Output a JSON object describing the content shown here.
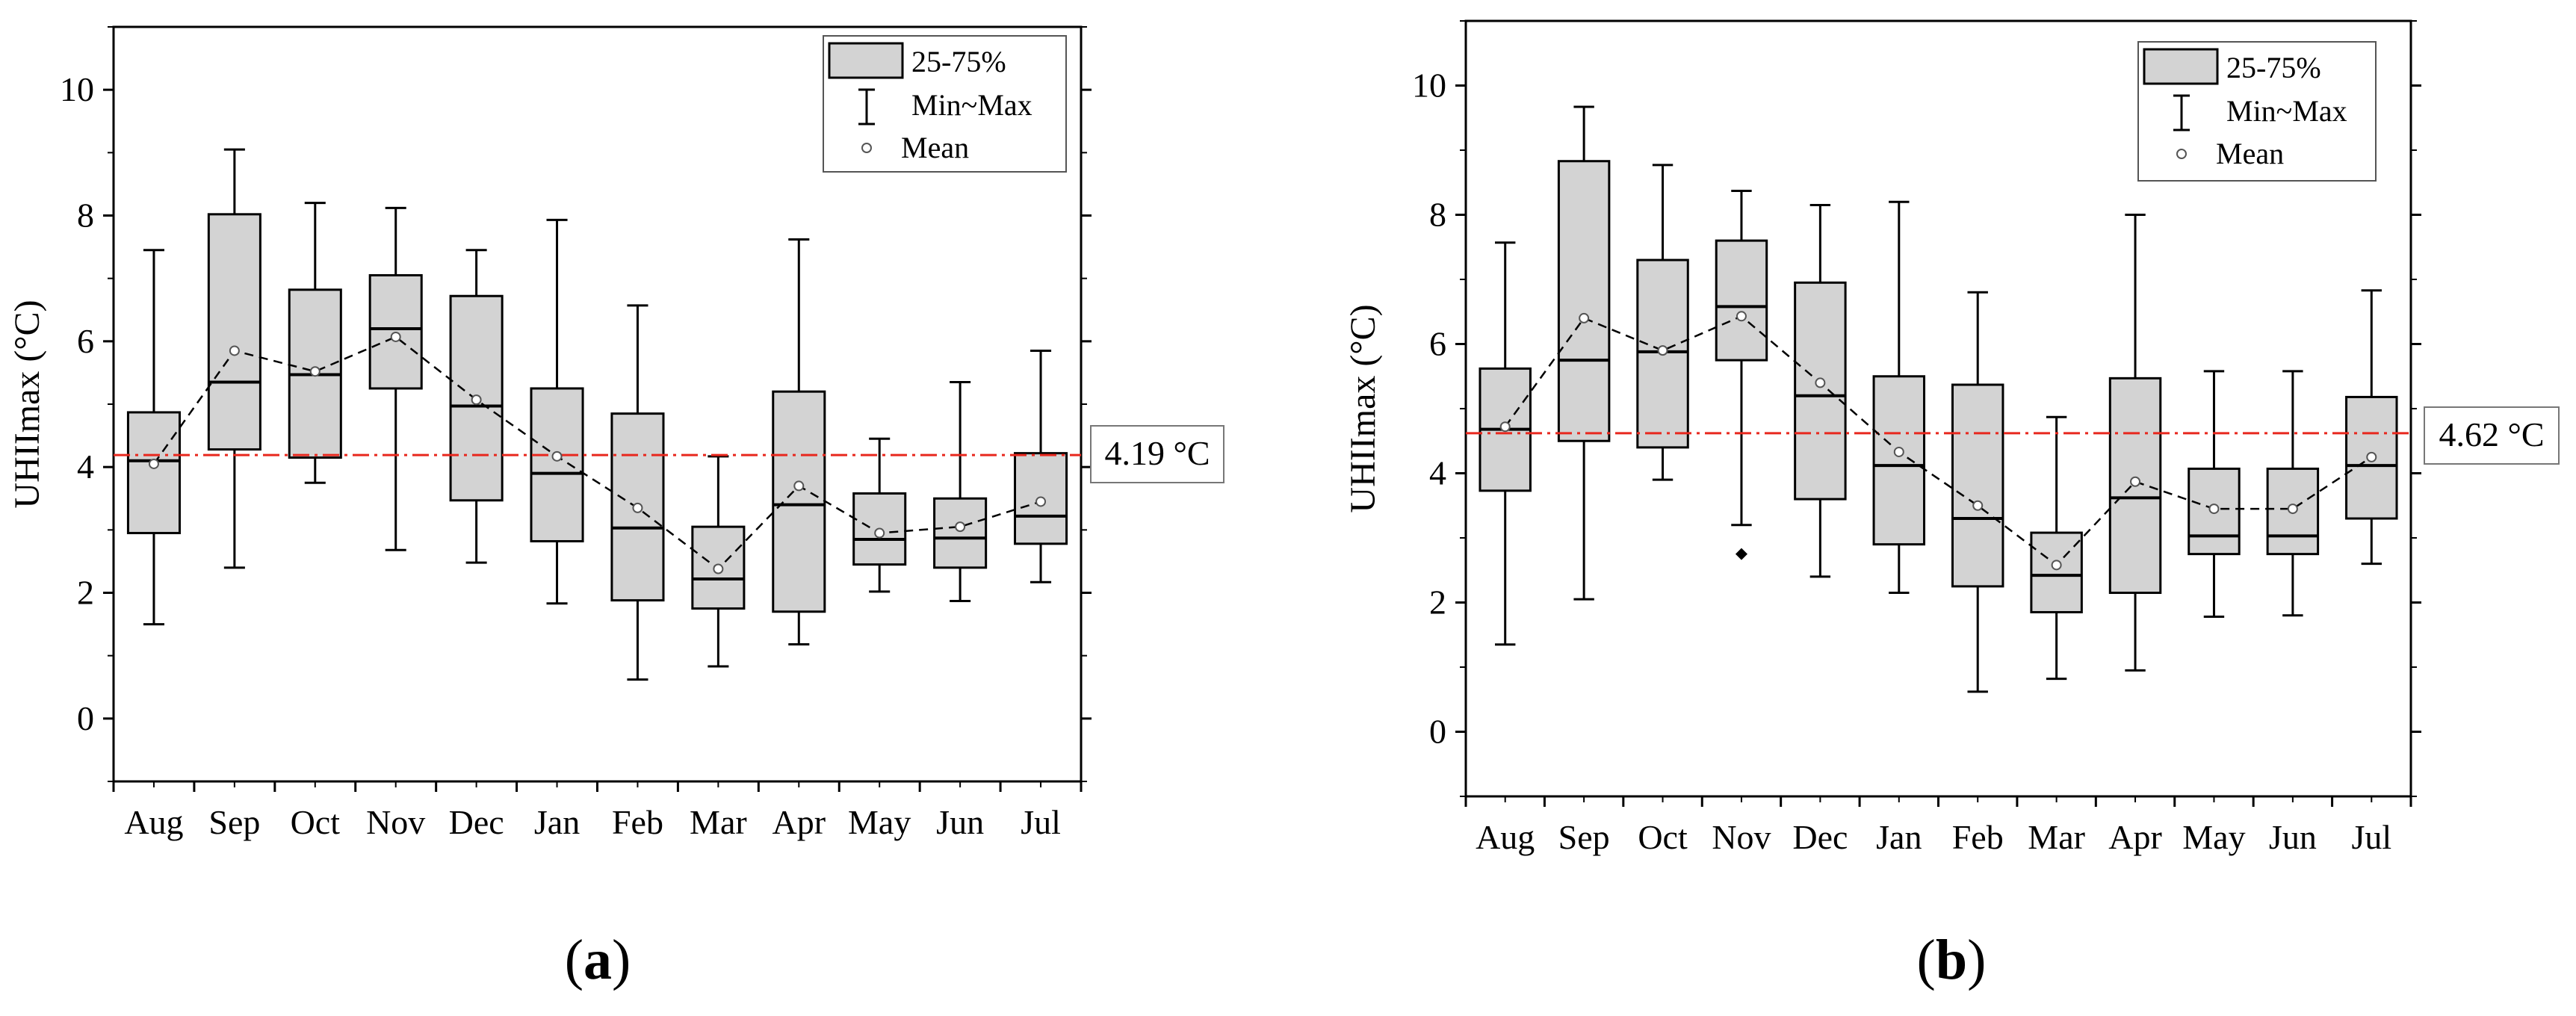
{
  "chart_data": [
    {
      "type": "box",
      "panel_label": "(a)",
      "ylabel": "UHIImax (°C)",
      "ylim": [
        -1,
        11
      ],
      "yticks": [
        0,
        2,
        4,
        6,
        8,
        10
      ],
      "categories": [
        "Aug",
        "Sep",
        "Oct",
        "Nov",
        "Dec",
        "Jan",
        "Feb",
        "Mar",
        "Apr",
        "May",
        "Jun",
        "Jul"
      ],
      "boxes": [
        {
          "min": 1.5,
          "q1": 2.95,
          "median": 4.1,
          "q3": 4.87,
          "max": 7.45,
          "mean": 4.05
        },
        {
          "min": 2.4,
          "q1": 4.28,
          "median": 5.35,
          "q3": 8.02,
          "max": 9.05,
          "mean": 5.85
        },
        {
          "min": 3.75,
          "q1": 4.15,
          "median": 5.47,
          "q3": 6.82,
          "max": 8.2,
          "mean": 5.52
        },
        {
          "min": 2.68,
          "q1": 5.25,
          "median": 6.2,
          "q3": 7.05,
          "max": 8.12,
          "mean": 6.07
        },
        {
          "min": 2.48,
          "q1": 3.47,
          "median": 4.97,
          "q3": 6.72,
          "max": 7.45,
          "mean": 5.07
        },
        {
          "min": 1.83,
          "q1": 2.82,
          "median": 3.9,
          "q3": 5.25,
          "max": 7.93,
          "mean": 4.17
        },
        {
          "min": 0.62,
          "q1": 1.88,
          "median": 3.03,
          "q3": 4.85,
          "max": 6.57,
          "mean": 3.35
        },
        {
          "min": 0.83,
          "q1": 1.75,
          "median": 2.22,
          "q3": 3.05,
          "max": 4.17,
          "mean": 2.38
        },
        {
          "min": 1.18,
          "q1": 1.7,
          "median": 3.4,
          "q3": 5.2,
          "max": 7.62,
          "mean": 3.7
        },
        {
          "min": 2.02,
          "q1": 2.45,
          "median": 2.85,
          "q3": 3.58,
          "max": 4.45,
          "mean": 2.95
        },
        {
          "min": 1.87,
          "q1": 2.4,
          "median": 2.87,
          "q3": 3.5,
          "max": 5.35,
          "mean": 3.05
        },
        {
          "min": 2.17,
          "q1": 2.78,
          "median": 3.22,
          "q3": 4.22,
          "max": 5.85,
          "mean": 3.45
        }
      ],
      "outliers": [],
      "reference_line": {
        "value": 4.19,
        "label": "4.19 °C",
        "color": "#e8281e"
      },
      "legend": {
        "box": "25-75%",
        "whisker": "Min~Max",
        "mean": "Mean",
        "position": "top-right"
      },
      "box_fill": "#d3d3d3"
    },
    {
      "type": "box",
      "panel_label": "(b)",
      "ylabel": "UHIImax (°C)",
      "ylim": [
        -1,
        11
      ],
      "yticks": [
        0,
        2,
        4,
        6,
        8,
        10
      ],
      "categories": [
        "Aug",
        "Sep",
        "Oct",
        "Nov",
        "Dec",
        "Jan",
        "Feb",
        "Mar",
        "Apr",
        "May",
        "Jun",
        "Jul"
      ],
      "boxes": [
        {
          "min": 1.35,
          "q1": 3.73,
          "median": 4.68,
          "q3": 5.62,
          "max": 7.57,
          "mean": 4.72
        },
        {
          "min": 2.05,
          "q1": 4.5,
          "median": 5.75,
          "q3": 8.83,
          "max": 9.67,
          "mean": 6.4
        },
        {
          "min": 3.9,
          "q1": 4.4,
          "median": 5.88,
          "q3": 7.3,
          "max": 8.77,
          "mean": 5.9
        },
        {
          "min": 3.2,
          "q1": 5.75,
          "median": 6.58,
          "q3": 7.6,
          "max": 8.37,
          "mean": 6.43
        },
        {
          "min": 2.4,
          "q1": 3.6,
          "median": 5.2,
          "q3": 6.95,
          "max": 8.15,
          "mean": 5.4
        },
        {
          "min": 2.15,
          "q1": 2.9,
          "median": 4.12,
          "q3": 5.5,
          "max": 8.2,
          "mean": 4.33
        },
        {
          "min": 0.62,
          "q1": 2.25,
          "median": 3.3,
          "q3": 5.37,
          "max": 6.8,
          "mean": 3.5
        },
        {
          "min": 0.82,
          "q1": 1.85,
          "median": 2.42,
          "q3": 3.08,
          "max": 4.87,
          "mean": 2.58
        },
        {
          "min": 0.95,
          "q1": 2.15,
          "median": 3.62,
          "q3": 5.47,
          "max": 8.0,
          "mean": 3.87
        },
        {
          "min": 1.78,
          "q1": 2.75,
          "median": 3.03,
          "q3": 4.07,
          "max": 5.58,
          "mean": 3.45
        },
        {
          "min": 1.8,
          "q1": 2.75,
          "median": 3.03,
          "q3": 4.07,
          "max": 5.58,
          "mean": 3.45
        },
        {
          "min": 2.6,
          "q1": 3.3,
          "median": 4.12,
          "q3": 5.18,
          "max": 6.83,
          "mean": 4.25
        }
      ],
      "outliers": [
        {
          "category": "Nov",
          "value": 2.75
        }
      ],
      "reference_line": {
        "value": 4.62,
        "label": "4.62 °C",
        "color": "#e8281e"
      },
      "legend": {
        "box": "25-75%",
        "whisker": "Min~Max",
        "mean": "Mean",
        "position": "top-right"
      },
      "box_fill": "#d3d3d3"
    }
  ]
}
